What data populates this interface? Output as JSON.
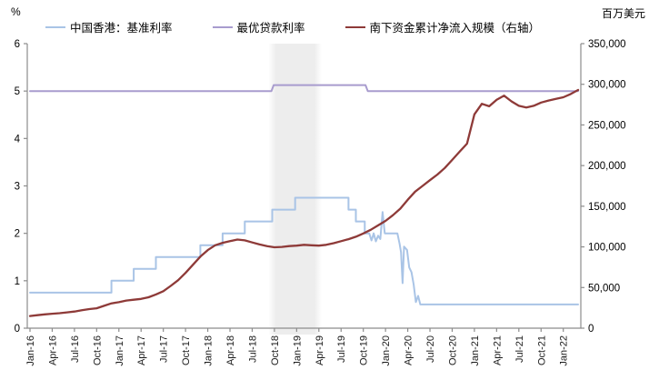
{
  "header": {
    "left_axis_unit": "%",
    "right_axis_unit": "百万美元"
  },
  "legend": [
    {
      "label": "中国香港：基准利率",
      "color": "#A9C4E6"
    },
    {
      "label": "最优贷款利率",
      "color": "#A89CCE"
    },
    {
      "label": "南下资金累计净流入规模（右轴）",
      "color": "#8E3A38"
    }
  ],
  "chart_data": {
    "type": "line",
    "title": "",
    "x_axis": {
      "unit": "month-since-Jan-2016",
      "tick_months": [
        0,
        3,
        6,
        9,
        12,
        15,
        18,
        21,
        24,
        27,
        30,
        33,
        36,
        39,
        42,
        45,
        48,
        51,
        54,
        57,
        60,
        63,
        66,
        69,
        72
      ],
      "tick_labels": [
        "Jan-16",
        "Apr-16",
        "Jul-16",
        "Oct-16",
        "Jan-17",
        "Apr-17",
        "Jul-17",
        "Oct-17",
        "Jan-18",
        "Apr-18",
        "Jul-18",
        "Oct-18",
        "Jan-19",
        "Apr-19",
        "Jul-19",
        "Oct-19",
        "Jan-20",
        "Apr-20",
        "Jul-20",
        "Oct-20",
        "Jan-21",
        "Apr-21",
        "Jul-21",
        "Oct-21",
        "Jan-22"
      ],
      "data_end_month": 74
    },
    "left_axis": {
      "label": "%",
      "min": 0,
      "max": 6,
      "ticks": [
        0,
        1,
        2,
        3,
        4,
        5,
        6
      ]
    },
    "right_axis": {
      "label": "百万美元",
      "min": 0,
      "max": 350000,
      "ticks": [
        0,
        50000,
        100000,
        150000,
        200000,
        250000,
        300000,
        350000
      ],
      "tick_labels": [
        "0",
        "50,000",
        "100,000",
        "150,000",
        "200,000",
        "250,000",
        "300,000",
        "350,000"
      ]
    },
    "shaded_band": {
      "start_month": 32.2,
      "end_month": 39.4,
      "color": "#EDEDED"
    },
    "grid": false,
    "legend_position": "top",
    "series": [
      {
        "name": "中国香港：基准利率",
        "axis": "left",
        "color": "#A9C4E6",
        "width": 2,
        "points": [
          [
            0,
            0.75
          ],
          [
            11,
            0.75
          ],
          [
            11,
            1.0
          ],
          [
            14,
            1.0
          ],
          [
            14,
            1.25
          ],
          [
            17,
            1.25
          ],
          [
            17,
            1.5
          ],
          [
            23,
            1.5
          ],
          [
            23,
            1.75
          ],
          [
            26,
            1.75
          ],
          [
            26,
            2.0
          ],
          [
            29,
            2.0
          ],
          [
            29,
            2.25
          ],
          [
            32.7,
            2.25
          ],
          [
            32.7,
            2.5
          ],
          [
            35.8,
            2.5
          ],
          [
            35.8,
            2.75
          ],
          [
            43,
            2.75
          ],
          [
            43,
            2.5
          ],
          [
            44,
            2.5
          ],
          [
            44,
            2.25
          ],
          [
            45.2,
            2.25
          ],
          [
            45.2,
            2.0
          ],
          [
            45.8,
            2.0
          ],
          [
            46.1,
            1.85
          ],
          [
            46.4,
            2.0
          ],
          [
            46.7,
            1.83
          ],
          [
            47.0,
            1.95
          ],
          [
            47.3,
            1.88
          ],
          [
            47.6,
            2.45
          ],
          [
            47.9,
            2.0
          ],
          [
            49.6,
            2.0
          ],
          [
            49.9,
            1.78
          ],
          [
            50.1,
            1.6
          ],
          [
            50.3,
            0.95
          ],
          [
            50.5,
            1.72
          ],
          [
            50.9,
            1.65
          ],
          [
            51.2,
            1.28
          ],
          [
            51.5,
            1.18
          ],
          [
            51.8,
            0.92
          ],
          [
            52.1,
            0.55
          ],
          [
            52.4,
            0.68
          ],
          [
            52.7,
            0.5
          ],
          [
            74,
            0.5
          ]
        ]
      },
      {
        "name": "最优贷款利率",
        "axis": "left",
        "color": "#A89CCE",
        "width": 2,
        "points": [
          [
            0,
            5.0
          ],
          [
            32.6,
            5.0
          ],
          [
            32.9,
            5.125
          ],
          [
            45.3,
            5.125
          ],
          [
            45.6,
            5.0
          ],
          [
            74,
            5.0
          ]
        ]
      },
      {
        "name": "南下资金累计净流入规模（右轴）",
        "axis": "right",
        "color": "#8E3A38",
        "width": 2.3,
        "start_month": 0,
        "values": [
          15000,
          16000,
          17000,
          17800,
          18500,
          19500,
          20500,
          22000,
          23500,
          24500,
          27500,
          30500,
          32000,
          34000,
          35000,
          36000,
          38000,
          41500,
          45500,
          52000,
          59000,
          68000,
          78000,
          88000,
          96000,
          102000,
          105000,
          107000,
          109000,
          108000,
          105500,
          103000,
          101000,
          99500,
          100000,
          101000,
          101500,
          102500,
          102000,
          101500,
          102500,
          104500,
          107000,
          109500,
          112500,
          116500,
          121000,
          126500,
          132000,
          139000,
          147000,
          158000,
          168000,
          175000,
          182000,
          189000,
          197000,
          207000,
          217000,
          227000,
          263000,
          276000,
          273000,
          281000,
          286000,
          279000,
          273500,
          271500,
          273500,
          277500,
          280000,
          282000,
          284000,
          288000,
          293000
        ]
      }
    ]
  }
}
